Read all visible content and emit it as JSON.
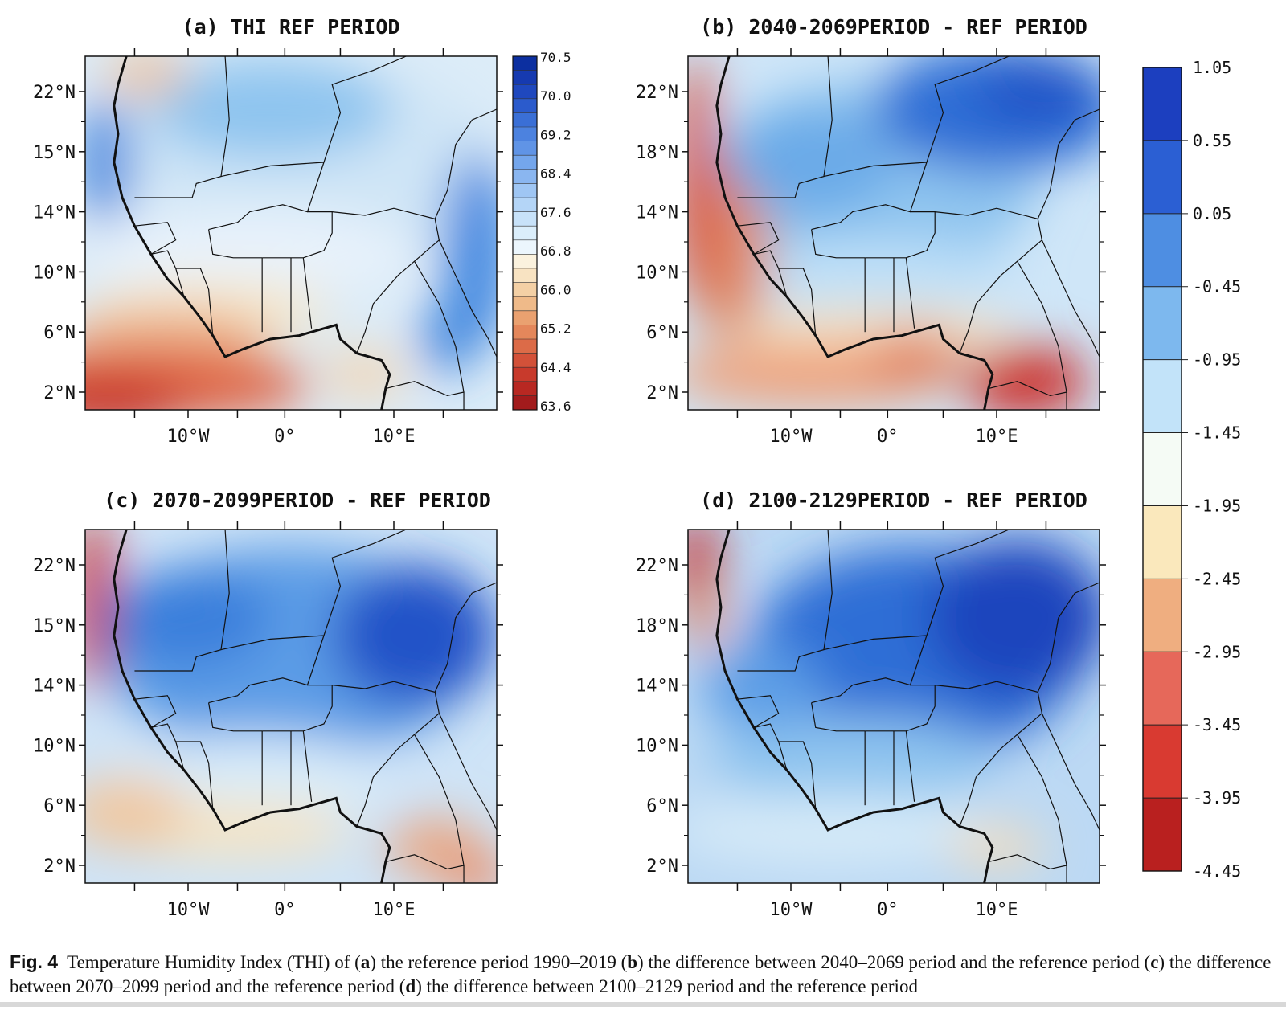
{
  "figure": {
    "panels": [
      {
        "id": "a",
        "title": "(a) THI REF PERIOD",
        "blobs": [
          {
            "c": "#cfe5f6"
          },
          {
            "c": "#8ec4ef"
          },
          {
            "c": "#3b82dd"
          },
          {
            "c": "#3f86e0"
          },
          {
            "c": "#e8f2fb"
          },
          {
            "c": "#f6e6c6"
          },
          {
            "c": "#ecaf86"
          },
          {
            "c": "#df6040"
          },
          {
            "c": "#c83226"
          },
          {
            "c": "#f1c196"
          },
          {
            "c": "#3b82dd"
          },
          {
            "c": "#f3d5b3"
          }
        ]
      },
      {
        "id": "b",
        "title": "(b) 2040-2069PERIOD - REF PERIOD",
        "blobs": [
          {
            "c": "#8ec4ef"
          },
          {
            "c": "#2f6ed6"
          },
          {
            "c": "#2155c8"
          },
          {
            "c": "#bfe0f8"
          },
          {
            "c": "#f6e4c2"
          },
          {
            "c": "#eea27d"
          },
          {
            "c": "#e08a66"
          },
          {
            "c": "#d94a35"
          },
          {
            "c": "#cc2f2a"
          },
          {
            "c": "#e07b5b"
          },
          {
            "c": "#6aaae8"
          }
        ]
      },
      {
        "id": "c",
        "title": "(c) 2070-2099PERIOD - REF PERIOD",
        "blobs": [
          {
            "c": "#5b9ce6"
          },
          {
            "c": "#2153c8"
          },
          {
            "c": "#d9ecf9"
          },
          {
            "c": "#f6e4c2"
          },
          {
            "c": "#eaa47e"
          },
          {
            "c": "#f1c79e"
          },
          {
            "c": "#cc2f2a"
          },
          {
            "c": "#e98b68"
          },
          {
            "c": "#3a7fdc"
          }
        ]
      },
      {
        "id": "d",
        "title": "(d) 2100-2129PERIOD - REF PERIOD",
        "blobs": [
          {
            "c": "#2f6ed6"
          },
          {
            "c": "#1c45bd"
          },
          {
            "c": "#8ec4ef"
          },
          {
            "c": "#d5eaf8"
          },
          {
            "c": "#f3dcbb"
          },
          {
            "c": "#cc2f2a"
          },
          {
            "c": "#e98b68"
          },
          {
            "c": "#5c9de6"
          }
        ]
      }
    ],
    "lat_ticks": [
      "22°N",
      "18°N",
      "14°N",
      "10°N",
      "6°N",
      "2°N"
    ],
    "lat_ticks_a": [
      "22°N",
      "15°N",
      "14°N",
      "10°N",
      "6°N",
      "2°N"
    ],
    "lat_ticks_c": [
      "22°N",
      "15°N",
      "14°N",
      "10°N",
      "6°N",
      "2°N"
    ],
    "lon_ticks": [
      "10°W",
      "0°",
      "10°E"
    ],
    "colorbar_a": {
      "labels": [
        "70.5",
        "70.0",
        "69.2",
        "68.4",
        "67.6",
        "66.8",
        "66.0",
        "65.2",
        "64.4",
        "63.6"
      ],
      "colors": [
        "#0c2fa0",
        "#163ab0",
        "#1f48be",
        "#2b5bcc",
        "#3a6fd6",
        "#4c82df",
        "#6094e6",
        "#74a6ec",
        "#8ab6f0",
        "#9fc6f4",
        "#b4d5f7",
        "#c8e2f9",
        "#dbeefb",
        "#ecf6fd",
        "#fbf2de",
        "#f8e3c2",
        "#f4d0a5",
        "#efba89",
        "#eaa170",
        "#e4875b",
        "#dc6b48",
        "#d35139",
        "#c83a2c",
        "#b82822",
        "#a21b1c"
      ]
    },
    "colorbar_b": {
      "labels": [
        "1.05",
        "0.55",
        "0.05",
        "-0.45",
        "-0.95",
        "-1.45",
        "-1.95",
        "-2.45",
        "-2.95",
        "-3.45",
        "-3.95",
        "-4.45"
      ],
      "colors": [
        "#1c3fbf",
        "#2b5fd3",
        "#4e8ee2",
        "#7db8ee",
        "#c2e3f9",
        "#f5fbf5",
        "#fae8bc",
        "#efae80",
        "#e6685a",
        "#d93a31",
        "#b9201f"
      ]
    },
    "colors": {
      "border": "#111111"
    }
  },
  "caption": {
    "figlabel": "Fig. 4",
    "pre": "Temperature Humidity Index (THI) of (",
    "a": "a",
    "t1": ") the reference period 1990–2019 (",
    "b": "b",
    "t2": ") the difference between 2040–2069 period and the reference period (",
    "c": "c",
    "t3": ") the difference between 2070–2099 period and the reference period (",
    "d": "d",
    "t4": ") the difference between 2100–2129 period and the reference period"
  }
}
